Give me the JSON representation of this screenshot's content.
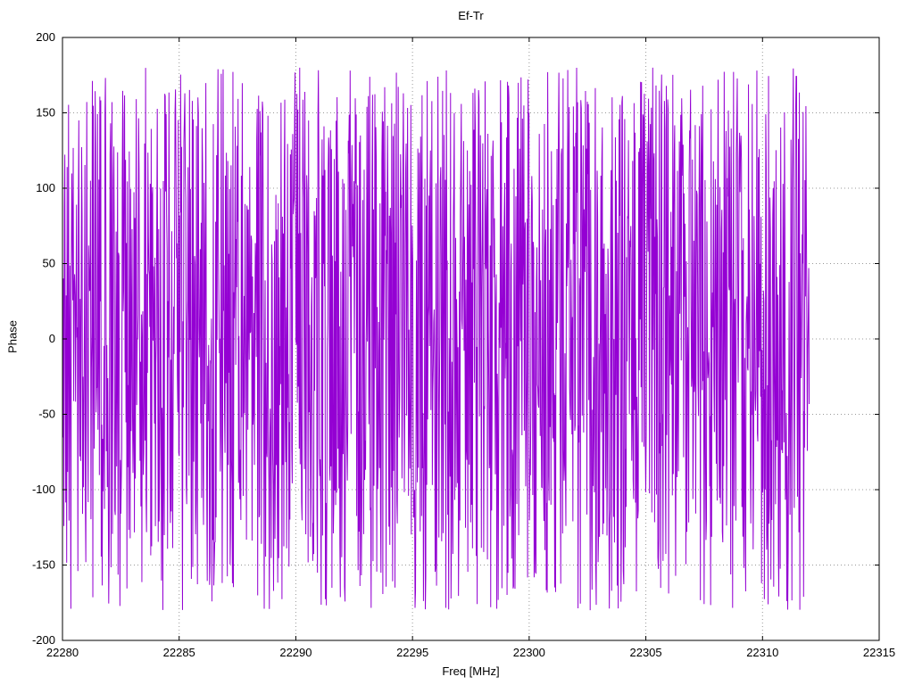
{
  "chart_data": {
    "type": "line",
    "title": "Ef-Tr",
    "xlabel": "Freq [MHz]",
    "ylabel": "Phase",
    "xlim": [
      22280,
      22315
    ],
    "ylim": [
      -200,
      200
    ],
    "x_ticks": [
      22280,
      22285,
      22290,
      22295,
      22300,
      22305,
      22310,
      22315
    ],
    "y_ticks": [
      -200,
      -150,
      -100,
      -50,
      0,
      50,
      100,
      150,
      200
    ],
    "grid": true,
    "legend": "none",
    "background": "#ffffff",
    "grid_color": "#999999",
    "border_color": "#000000",
    "series": [
      {
        "name": "phase",
        "color": "#9400d3",
        "description": "wrapped phase noise, uniformly distributed between -180 and 180 degrees; trace spans 22280 to ~22312 MHz then stops",
        "x_start": 22280.0,
        "x_end": 22312.0,
        "n_points": 1600,
        "value_min": -180,
        "value_max": 180,
        "seed": 987654321
      }
    ]
  }
}
